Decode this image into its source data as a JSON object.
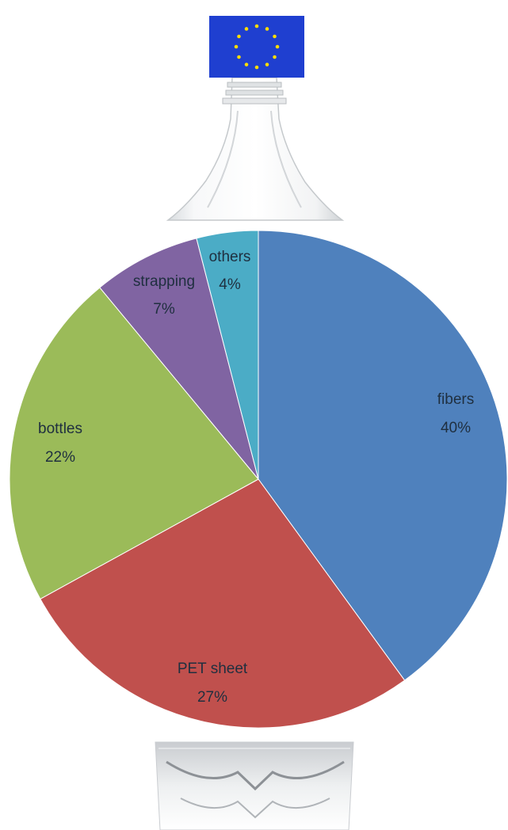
{
  "chart_data": {
    "type": "pie",
    "start_angle_deg": 0,
    "direction": "clockwise",
    "slices": [
      {
        "label": "fibers",
        "value": 40,
        "value_label": "40%",
        "color": "#4f81bd"
      },
      {
        "label": "PET sheet",
        "value": 27,
        "value_label": "27%",
        "color": "#c0504d"
      },
      {
        "label": "bottles",
        "value": 22,
        "value_label": "22%",
        "color": "#9bbb59"
      },
      {
        "label": "strapping",
        "value": 7,
        "value_label": "7%",
        "color": "#8064a2"
      },
      {
        "label": "others",
        "value": 4,
        "value_label": "4%",
        "color": "#4bacc6"
      }
    ]
  },
  "decoration": {
    "cap_color": "#1f3fd0",
    "star_color": "#ffdd00",
    "cap_icon": "eu-flag-icon",
    "bottle_icon": "plastic-bottle-icon"
  }
}
